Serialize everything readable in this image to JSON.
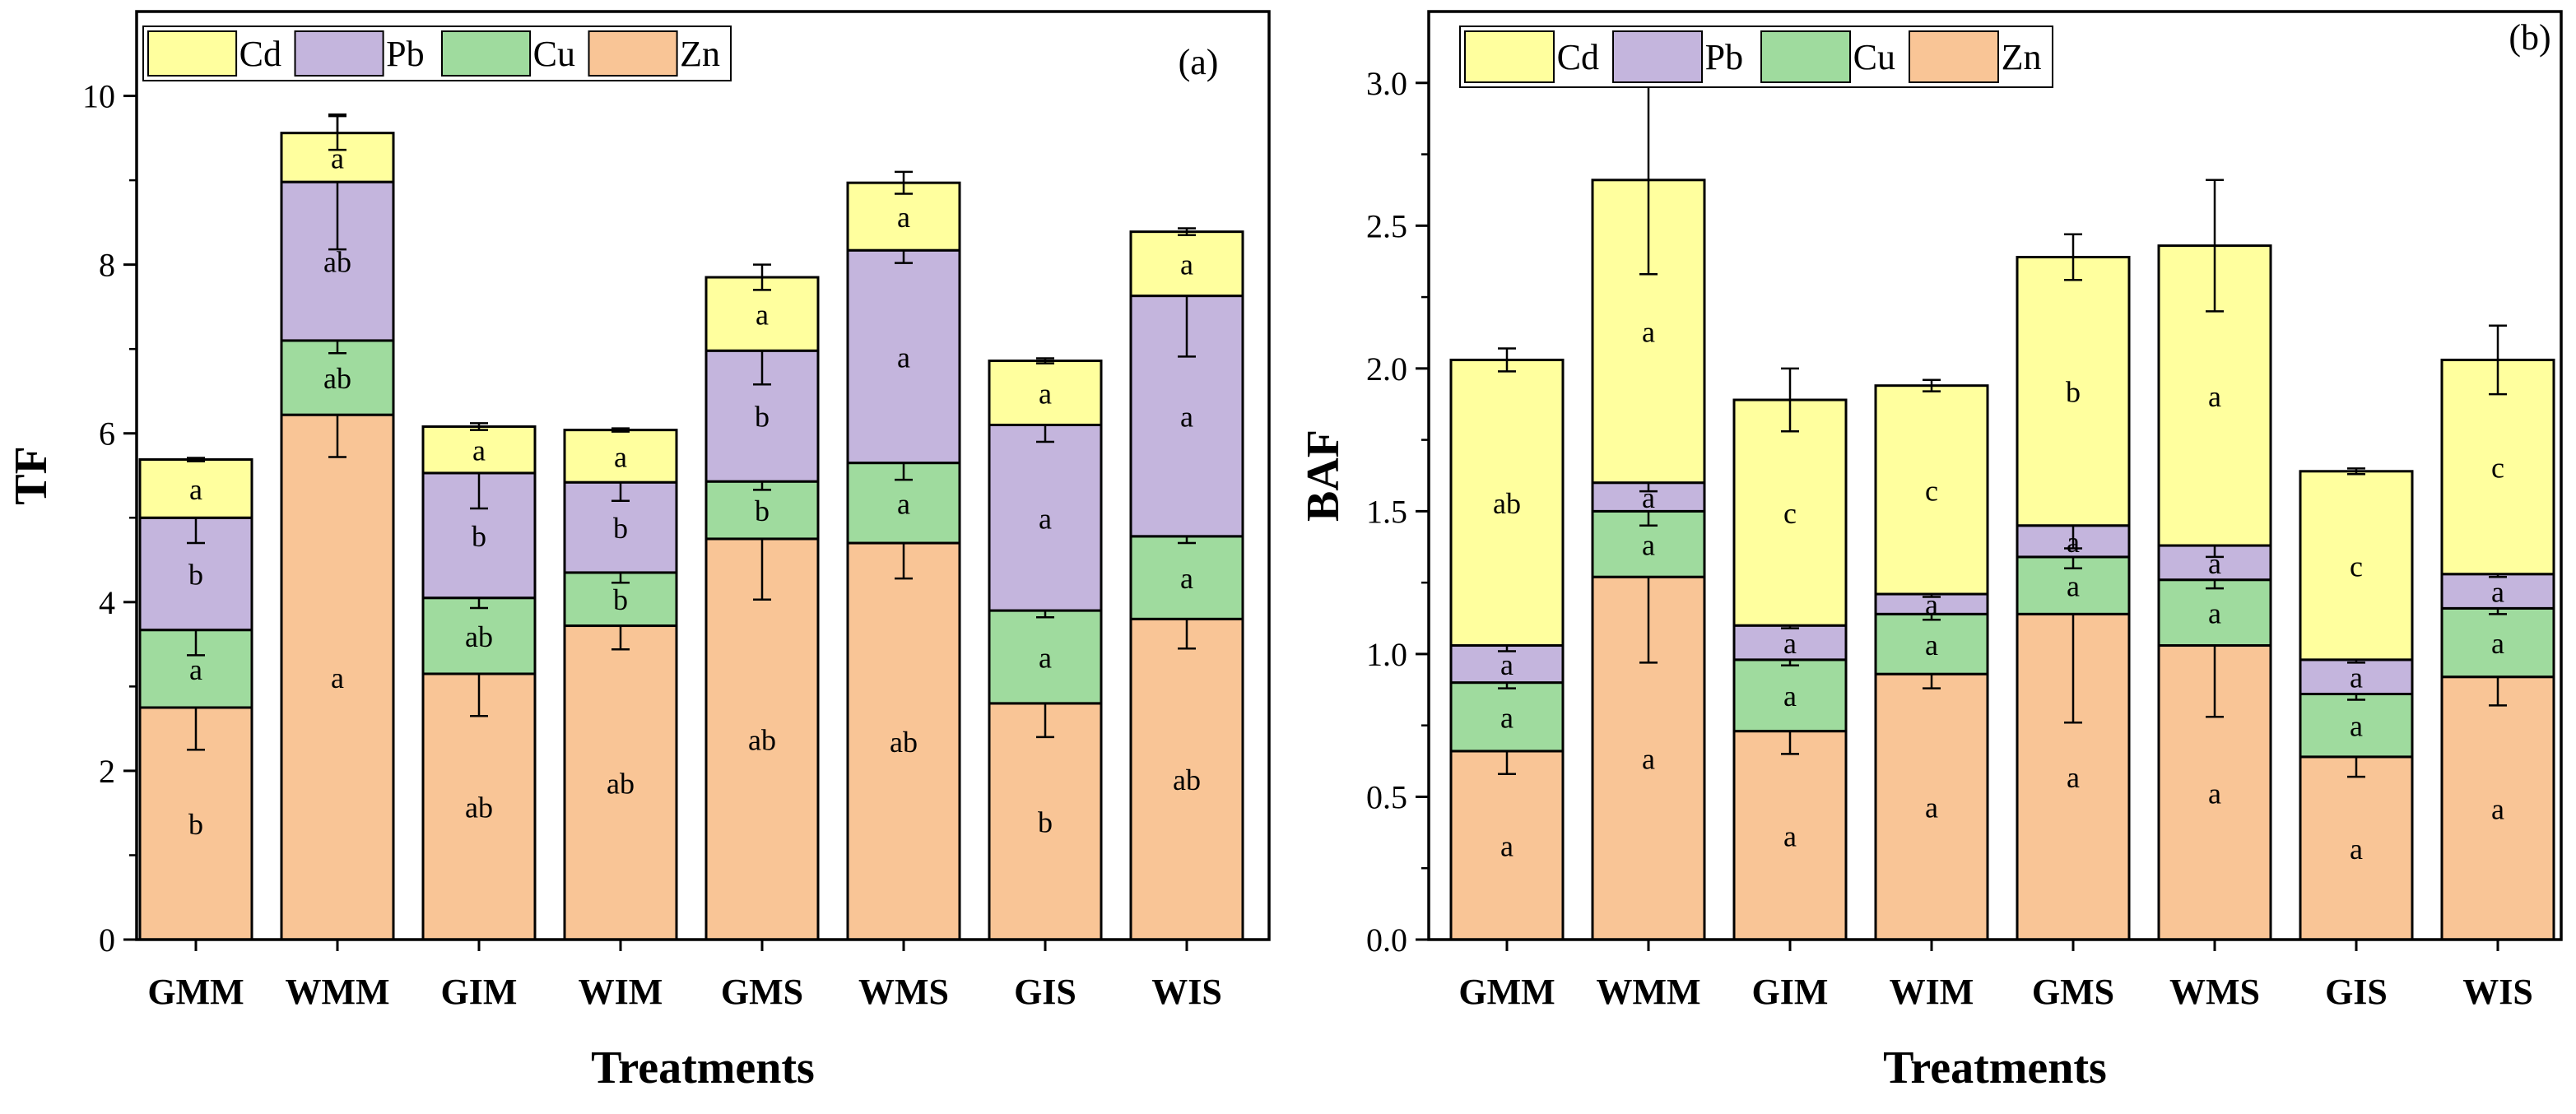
{
  "chart_data": [
    {
      "type": "bar",
      "stacked": true,
      "panel_label": "(a)",
      "ylabel": "TF",
      "xlabel": "Treatments",
      "ylim": [
        0,
        11
      ],
      "yticks": [
        0,
        2,
        4,
        6,
        8,
        10
      ],
      "ytick_labels": [
        "0",
        "2",
        "4",
        "6",
        "8",
        "10"
      ],
      "categories": [
        "GMM",
        "WMM",
        "GIM",
        "WIM",
        "GMS",
        "WMS",
        "GIS",
        "WIS"
      ],
      "legend": [
        "Cd",
        "Pb",
        "Cu",
        "Zn"
      ],
      "legend_position": "top-left",
      "series": [
        {
          "name": "Zn",
          "color": "#F9C596",
          "values": [
            2.75,
            6.22,
            3.15,
            3.72,
            4.75,
            4.7,
            2.8,
            3.8
          ],
          "errors": [
            0.5,
            0.5,
            0.5,
            0.28,
            0.72,
            0.42,
            0.4,
            0.35
          ],
          "sig": [
            "b",
            "a",
            "ab",
            "ab",
            "ab",
            "ab",
            "b",
            "ab"
          ]
        },
        {
          "name": "Cu",
          "color": "#9FDB9E",
          "values": [
            0.92,
            0.88,
            0.9,
            0.63,
            0.68,
            0.95,
            1.1,
            0.98
          ],
          "errors": [
            0.3,
            0.15,
            0.12,
            0.12,
            0.1,
            0.2,
            0.08,
            0.08
          ],
          "sig": [
            "a",
            "ab",
            "ab",
            "b",
            "b",
            "a",
            "a",
            "a"
          ]
        },
        {
          "name": "Pb",
          "color": "#C4B5DD",
          "values": [
            1.33,
            1.88,
            1.48,
            1.07,
            1.55,
            2.52,
            2.2,
            2.85
          ],
          "errors": [
            0.3,
            0.8,
            0.42,
            0.22,
            0.4,
            0.15,
            0.2,
            0.72
          ],
          "sig": [
            "b",
            "ab",
            "b",
            "b",
            "b",
            "a",
            "a",
            "a"
          ]
        },
        {
          "name": "Cd",
          "color": "#FFFF9E",
          "values": [
            0.69,
            0.58,
            0.55,
            0.62,
            0.87,
            0.8,
            0.76,
            0.76
          ],
          "errors": [
            0.02,
            0.2,
            0.04,
            0.02,
            0.15,
            0.13,
            0.03,
            0.04
          ],
          "sig": [
            "a",
            "a",
            "a",
            "a",
            "a",
            "a",
            "a",
            "a"
          ]
        }
      ]
    },
    {
      "type": "bar",
      "stacked": true,
      "panel_label": "(b)",
      "ylabel": "BAF",
      "xlabel": "Treatments",
      "ylim": [
        0,
        3.25
      ],
      "yticks": [
        0,
        0.5,
        1.0,
        1.5,
        2.0,
        2.5,
        3.0
      ],
      "ytick_labels": [
        "0.0",
        "0.5",
        "1.0",
        "1.5",
        "2.0",
        "2.5",
        "3.0"
      ],
      "categories": [
        "GMM",
        "WMM",
        "GIM",
        "WIM",
        "GMS",
        "WMS",
        "GIS",
        "WIS"
      ],
      "legend": [
        "Cd",
        "Pb",
        "Cu",
        "Zn"
      ],
      "legend_position": "top-left",
      "series": [
        {
          "name": "Zn",
          "color": "#F9C596",
          "values": [
            0.66,
            1.27,
            0.73,
            0.93,
            1.14,
            1.03,
            0.64,
            0.92
          ],
          "errors": [
            0.08,
            0.3,
            0.08,
            0.05,
            0.38,
            0.25,
            0.07,
            0.1
          ],
          "sig": [
            "a",
            "a",
            "a",
            "a",
            "a",
            "a",
            "a",
            "a"
          ]
        },
        {
          "name": "Cu",
          "color": "#9FDB9E",
          "values": [
            0.24,
            0.23,
            0.25,
            0.21,
            0.2,
            0.23,
            0.22,
            0.24
          ],
          "errors": [
            0.02,
            0.05,
            0.02,
            0.02,
            0.04,
            0.03,
            0.02,
            0.02
          ],
          "sig": [
            "a",
            "a",
            "a",
            "a",
            "a",
            "a",
            "a",
            "a"
          ]
        },
        {
          "name": "Pb",
          "color": "#C4B5DD",
          "values": [
            0.13,
            0.1,
            0.12,
            0.07,
            0.11,
            0.12,
            0.12,
            0.12
          ],
          "errors": [
            0.02,
            0.03,
            0.01,
            0.01,
            0.08,
            0.04,
            0.01,
            0.01
          ],
          "sig": [
            "a",
            "a",
            "a",
            "a",
            "a",
            "a",
            "a",
            "a"
          ]
        },
        {
          "name": "Cd",
          "color": "#FFFF9E",
          "values": [
            1.0,
            1.06,
            0.79,
            0.73,
            0.94,
            1.05,
            0.66,
            0.75
          ],
          "errors": [
            0.04,
            0.33,
            0.11,
            0.02,
            0.08,
            0.23,
            0.01,
            0.12
          ],
          "sig": [
            "ab",
            "a",
            "c",
            "c",
            "b",
            "a",
            "c",
            "c"
          ]
        }
      ]
    }
  ]
}
